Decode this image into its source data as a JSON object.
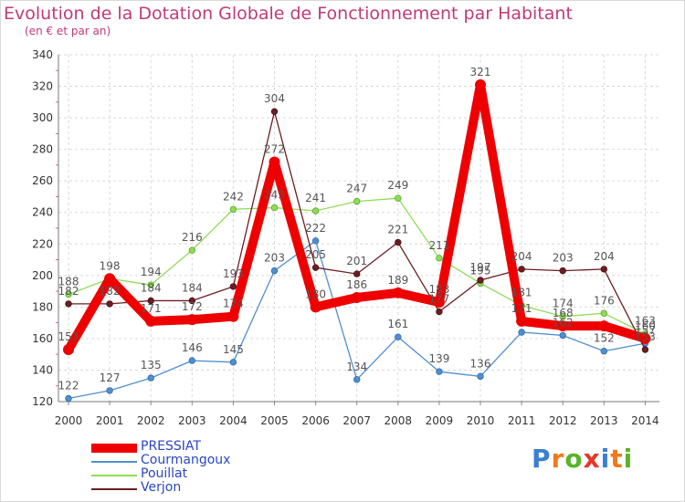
{
  "title": "Evolution de la Dotation Globale de Fonctionnement par Habitant",
  "subtitle": "(en € et par an)",
  "logo": {
    "letters": [
      "P",
      "r",
      "o",
      "x",
      "i",
      "t",
      "i"
    ],
    "colors": [
      "#3a7fd1",
      "#f07a1a",
      "#5ab42a",
      "#e8352a",
      "#3a7fd1",
      "#f07a1a",
      "#5ab42a"
    ]
  },
  "chart_data": {
    "type": "line",
    "title": "Evolution de la Dotation Globale de Fonctionnement par Habitant",
    "subtitle": "(en € et par an)",
    "xlabel": "",
    "ylabel": "",
    "x": [
      "2000",
      "2001",
      "2002",
      "2003",
      "2004",
      "2005",
      "2006",
      "2007",
      "2008",
      "2009",
      "2010",
      "2011",
      "2012",
      "2013",
      "2014"
    ],
    "y_ticks": [
      "120",
      "140",
      "160",
      "180",
      "200",
      "220",
      "240",
      "260",
      "280",
      "300",
      "320",
      "340"
    ],
    "ylim": [
      120,
      340
    ],
    "grid": true,
    "legend_position": "bottom-left",
    "series": [
      {
        "name": "Courmangoux",
        "color": "#4f8fcf",
        "values": [
          122,
          127,
          135,
          146,
          145,
          203,
          222,
          134,
          161,
          139,
          136,
          164,
          162,
          152,
          157
        ],
        "labels": [
          "122",
          "127",
          "135",
          "146",
          "145",
          "203",
          "222",
          "134",
          "161",
          "139",
          "136",
          "",
          "162",
          "152",
          "157"
        ]
      },
      {
        "name": "Pouillat",
        "color": "#8fdc58",
        "values": [
          188,
          198,
          194,
          216,
          242,
          243,
          241,
          247,
          249,
          211,
          195,
          181,
          174,
          176,
          163
        ],
        "labels": [
          "188",
          "",
          "194",
          "216",
          "242",
          "243",
          "241",
          "247",
          "249",
          "211",
          "195",
          "181",
          "174",
          "176",
          "163"
        ]
      },
      {
        "name": "Verjon",
        "color": "#6b1e23",
        "values": [
          182,
          182,
          184,
          184,
          193,
          304,
          205,
          201,
          221,
          177,
          197,
          204,
          203,
          204,
          153
        ],
        "labels": [
          "182",
          "182",
          "184",
          "184",
          "193",
          "304",
          "205",
          "201",
          "221",
          "177",
          "197",
          "204",
          "203",
          "204",
          "153"
        ]
      },
      {
        "name": "PRESSIAT",
        "color": "#ee0000",
        "values": [
          153,
          198,
          171,
          172,
          174,
          272,
          180,
          186,
          189,
          183,
          321,
          171,
          168,
          168,
          160
        ],
        "labels": [
          "153",
          "198",
          "171",
          "172",
          "174",
          "272",
          "180",
          "186",
          "189",
          "183",
          "321",
          "171",
          "168",
          "",
          "160"
        ]
      }
    ]
  },
  "legend": [
    {
      "name": "PRESSIAT",
      "color": "#ee0000",
      "width": 10
    },
    {
      "name": "Courmangoux",
      "color": "#4f8fcf",
      "width": 2
    },
    {
      "name": "Pouillat",
      "color": "#8fdc58",
      "width": 2
    },
    {
      "name": "Verjon",
      "color": "#6b1e23",
      "width": 2
    }
  ]
}
